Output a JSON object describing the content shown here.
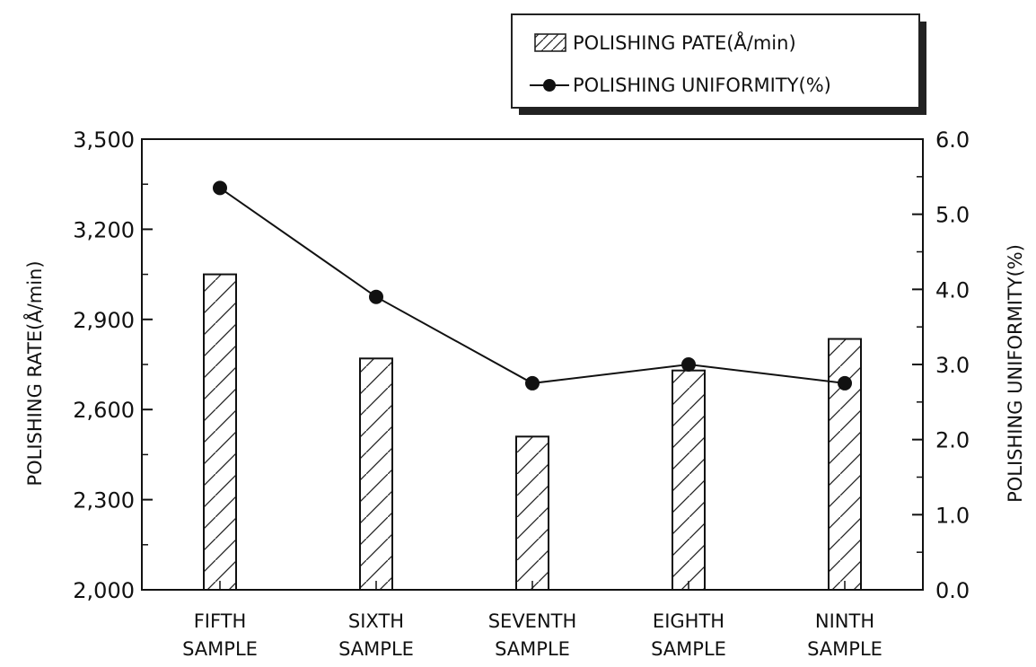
{
  "chart_data": {
    "type": "bar",
    "categories": [
      [
        "FIFTH",
        "SAMPLE"
      ],
      [
        "SIXTH",
        "SAMPLE"
      ],
      [
        "SEVENTH",
        "SAMPLE"
      ],
      [
        "EIGHTH",
        "SAMPLE"
      ],
      [
        "NINTH",
        "SAMPLE"
      ]
    ],
    "series": [
      {
        "name": "POLISHING PATE(Å/min)",
        "kind": "bar",
        "axis": "left",
        "values": [
          3050,
          2770,
          2510,
          2730,
          2835
        ]
      },
      {
        "name": "POLISHING UNIFORMITY(%)",
        "kind": "line",
        "axis": "right",
        "values": [
          5.35,
          3.9,
          2.75,
          3.0,
          2.75
        ]
      }
    ],
    "ylabel": "POLISHING RATE(Å/min)",
    "y2label": "POLISHING UNIFORMITY(%)",
    "ylim": [
      2000,
      3500
    ],
    "y2lim": [
      0.0,
      6.0
    ],
    "yticks": [
      "2,000",
      "2,300",
      "2,600",
      "2,900",
      "3,200",
      "3,500"
    ],
    "y2ticks": [
      "0.0",
      "1.0",
      "2.0",
      "3.0",
      "4.0",
      "5.0",
      "6.0"
    ],
    "legend_position": "top-right",
    "grid": false
  }
}
